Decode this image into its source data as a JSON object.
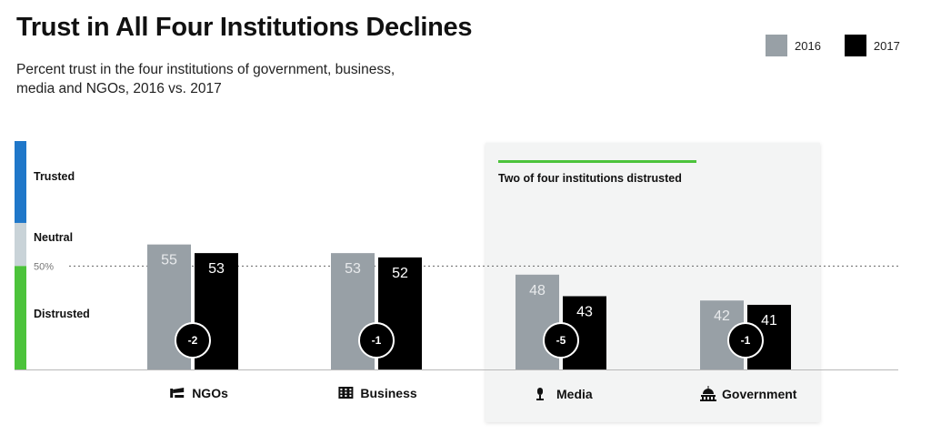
{
  "legend": {
    "items": [
      {
        "label": "2016",
        "color": "#98a0a6"
      },
      {
        "label": "2017",
        "color": "#000000"
      }
    ]
  },
  "colors": {
    "bar_2016": "#98a0a6",
    "bar_2017": "#000000",
    "trusted_zone": "#1f77c9",
    "neutral_zone": "#c9d3d8",
    "distrusted_zone": "#4cc33b",
    "panel_accent": "#4cc33b",
    "panel_background": "#f3f4f4",
    "value_label_2016": "#e8eaec",
    "value_label_2017": "#ffffff"
  },
  "chart_data": {
    "type": "bar",
    "title": "Trust in All Four Institutions Declines",
    "subtitle": "Percent trust in the four institutions of government, business, media and NGOs, 2016 vs. 2017",
    "categories": [
      "NGOs",
      "Business",
      "Media",
      "Government"
    ],
    "category_icons": [
      "ngo-icon",
      "business-building-icon",
      "microphone-icon",
      "capitol-icon"
    ],
    "series": [
      {
        "name": "2016",
        "values": [
          55,
          53,
          48,
          42
        ]
      },
      {
        "name": "2017",
        "values": [
          53,
          52,
          43,
          41
        ]
      }
    ],
    "changes": [
      "-2",
      "-1",
      "-5",
      "-1"
    ],
    "zones": [
      {
        "label": "Trusted",
        "from": 60,
        "to": 100
      },
      {
        "label": "Neutral",
        "from": 50,
        "to": 60
      },
      {
        "label": "Distrusted",
        "from": 0,
        "to": 50
      }
    ],
    "reference_line": {
      "value": 50,
      "label": "50%"
    },
    "highlight_panel": {
      "label": "Two of four institutions distrusted",
      "categories": [
        "Media",
        "Government"
      ]
    },
    "ylim": [
      26,
      79
    ],
    "legend_position": "top-right",
    "grid": false
  }
}
